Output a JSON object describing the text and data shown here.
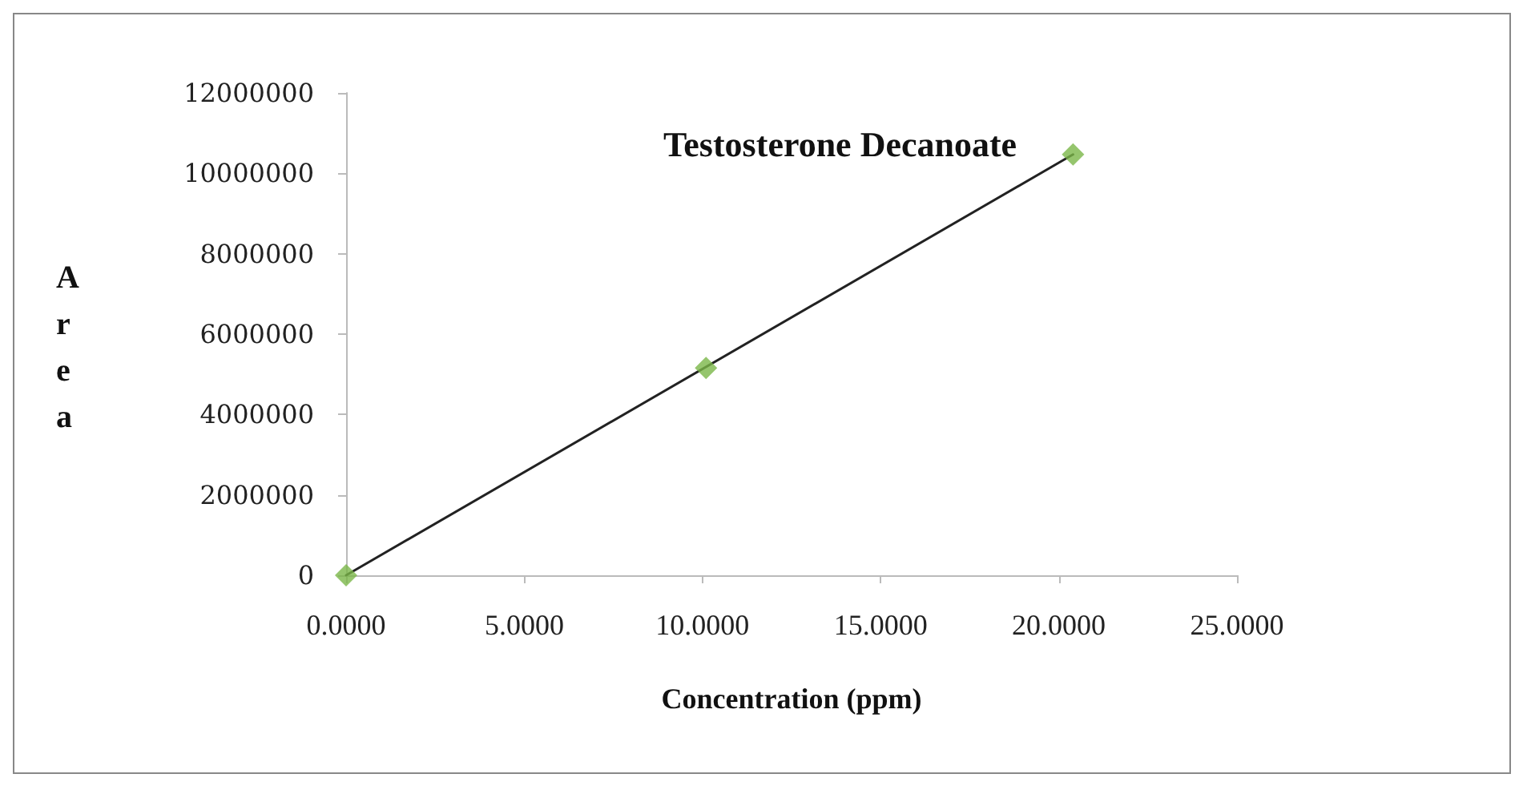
{
  "chart_data": {
    "type": "scatter",
    "title": "Testosterone Decanoate",
    "xlabel": "Concentration (ppm)",
    "ylabel": "Area",
    "series": [
      {
        "color": "#7ab648",
        "x": [
          0,
          10.1,
          20.4
        ],
        "values": [
          0,
          5160000,
          10470000
        ],
        "marker": "diamond"
      },
      {
        "type": "line",
        "color": "#222222",
        "x": [
          0,
          20.4
        ],
        "values": [
          0,
          10470000
        ],
        "marker": "none",
        "line_style": "solid"
      }
    ],
    "xlim": [
      0,
      25
    ],
    "xticks": [
      {
        "value": 0,
        "label": "0.0000"
      },
      {
        "value": 5,
        "label": "5.0000"
      },
      {
        "value": 10,
        "label": "10.0000"
      },
      {
        "value": 15,
        "label": "15.0000"
      },
      {
        "value": 20,
        "label": "20.0000"
      },
      {
        "value": 25,
        "label": "25.0000"
      }
    ],
    "ylim": [
      0,
      12000000
    ],
    "yticks": [
      0,
      2000000,
      4000000,
      6000000,
      8000000,
      10000000,
      12000000
    ],
    "grid": false
  }
}
